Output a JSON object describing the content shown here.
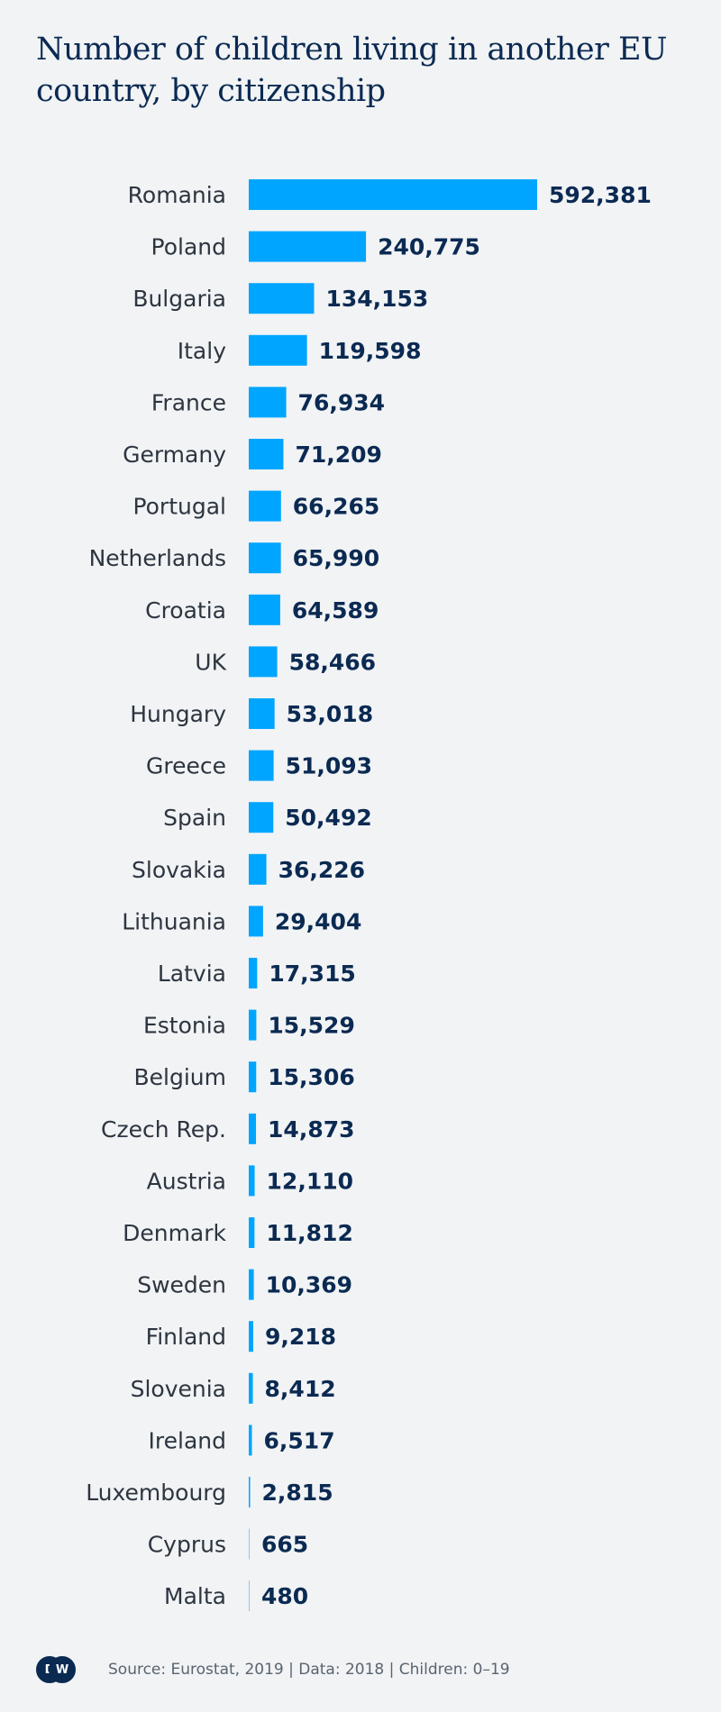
{
  "chart_data": {
    "type": "bar",
    "orientation": "horizontal",
    "title": "Number of children living in another EU country, by citizenship",
    "categories": [
      "Romania",
      "Poland",
      "Bulgaria",
      "Italy",
      "France",
      "Germany",
      "Portugal",
      "Netherlands",
      "Croatia",
      "UK",
      "Hungary",
      "Greece",
      "Spain",
      "Slovakia",
      "Lithuania",
      "Latvia",
      "Estonia",
      "Belgium",
      "Czech Rep.",
      "Austria",
      "Denmark",
      "Sweden",
      "Finland",
      "Slovenia",
      "Ireland",
      "Luxembourg",
      "Cyprus",
      "Malta"
    ],
    "values": [
      592381,
      240775,
      134153,
      119598,
      76934,
      71209,
      66265,
      65990,
      64589,
      58466,
      53018,
      51093,
      50492,
      36226,
      29404,
      17315,
      15529,
      15306,
      14873,
      12110,
      11812,
      10369,
      9218,
      8412,
      6517,
      2815,
      665,
      480
    ],
    "value_labels": [
      "592,381",
      "240,775",
      "134,153",
      "119,598",
      "76,934",
      "71,209",
      "66,265",
      "65,990",
      "64,589",
      "58,466",
      "53,018",
      "51,093",
      "50,492",
      "36,226",
      "29,404",
      "17,315",
      "15,529",
      "15,306",
      "14,873",
      "12,110",
      "11,812",
      "10,369",
      "9,218",
      "8,412",
      "6,517",
      "2,815",
      "665",
      "480"
    ],
    "xlabel": "",
    "ylabel": "",
    "xlim": [
      0,
      592381
    ],
    "grid": false,
    "bar_color": "#00a5ff"
  },
  "footer": {
    "logo_text": "DW",
    "source": "Source: Eurostat, 2019  | Data: 2018 | Children: 0–19"
  }
}
